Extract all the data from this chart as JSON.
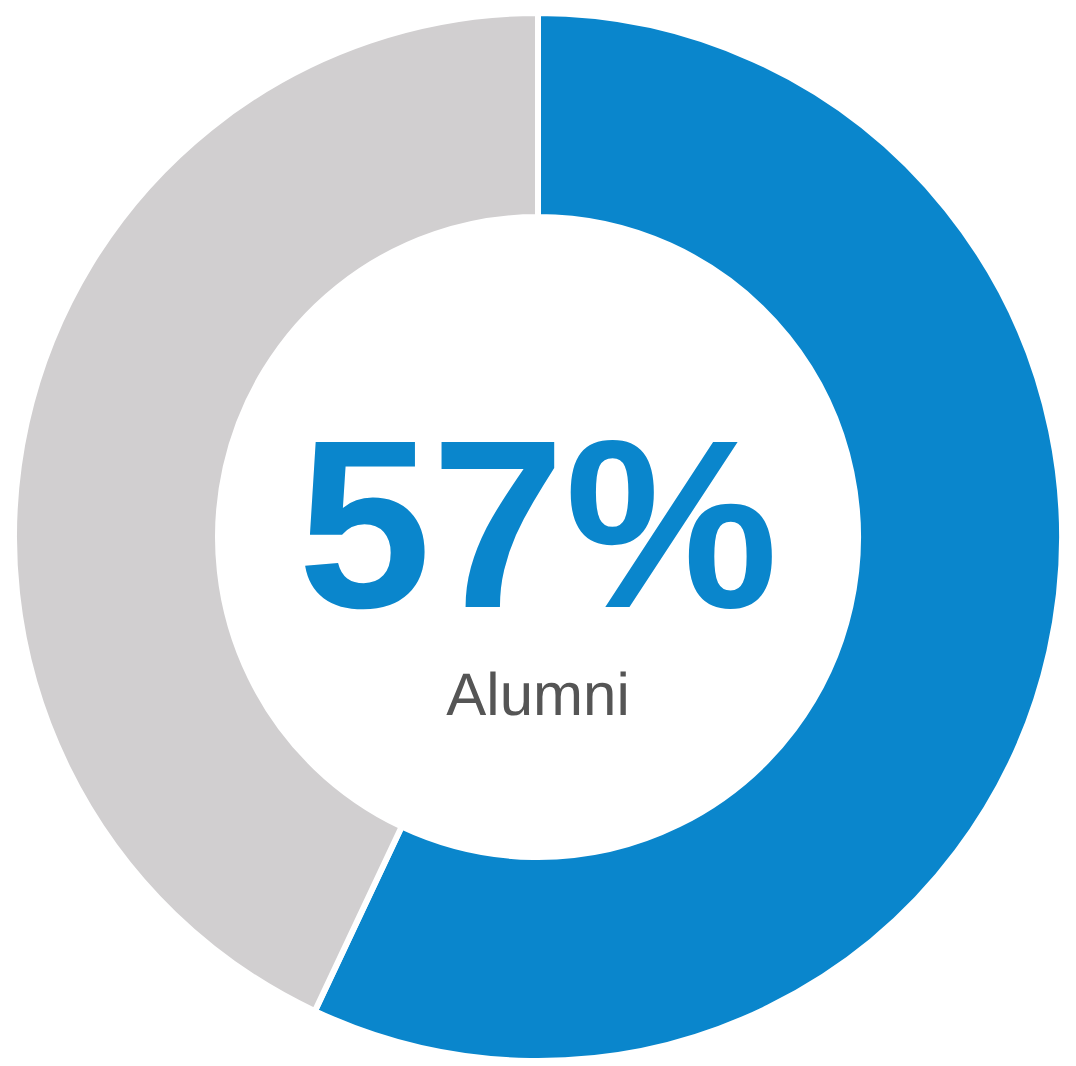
{
  "chart_data": {
    "type": "donut",
    "categories": [
      "Alumni",
      null
    ],
    "values": [
      57,
      43
    ],
    "colors": [
      "#0a86cc",
      "#d1cfd0"
    ],
    "value_labels": [
      "57%",
      null
    ],
    "legend": false
  }
}
